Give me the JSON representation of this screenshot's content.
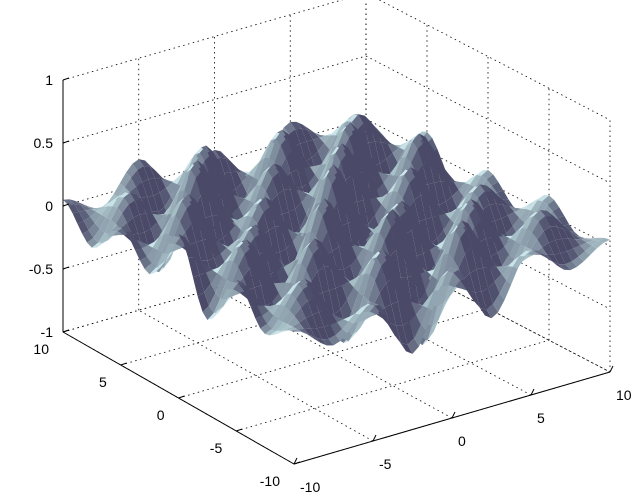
{
  "chart_data": {
    "type": "surface",
    "title": "",
    "xlabel": "",
    "ylabel": "",
    "zlabel": "",
    "xlim": [
      -10,
      10
    ],
    "ylim": [
      -10,
      10
    ],
    "zlim": [
      -1,
      1
    ],
    "x_ticks": [
      "-10",
      "-5",
      "0",
      "5",
      "10"
    ],
    "y_ticks": [
      "-10",
      "-5",
      "0",
      "5",
      "10"
    ],
    "z_ticks": [
      "-1",
      "-0.5",
      "0",
      "0.5",
      "1"
    ],
    "grid": true,
    "surface_color": "#b4d0d4",
    "shadow_color": "#4a4a68",
    "note_values": "approximate z-heights (range about -0.7 to 0.5) over x,y grid",
    "x_values": [
      -10,
      -7.5,
      -5,
      -2.5,
      0,
      2.5,
      5,
      7.5,
      10
    ],
    "y_values": [
      -10,
      -7.5,
      -5,
      -2.5,
      0,
      2.5,
      5,
      7.5,
      10
    ],
    "z_values": [
      [
        0.05,
        -0.15,
        0.1,
        -0.4,
        0.2,
        -0.3,
        0.15,
        -0.1,
        0.05
      ],
      [
        -0.1,
        0.25,
        -0.35,
        0.3,
        -0.55,
        0.35,
        -0.2,
        0.25,
        -0.05
      ],
      [
        0.2,
        -0.3,
        0.35,
        -0.2,
        0.4,
        -0.5,
        0.3,
        -0.25,
        0.15
      ],
      [
        -0.25,
        0.3,
        -0.45,
        0.45,
        -0.3,
        0.25,
        -0.4,
        0.2,
        -0.1
      ],
      [
        0.3,
        -0.2,
        0.2,
        -0.55,
        0.5,
        -0.35,
        0.3,
        -0.3,
        0.1
      ],
      [
        -0.15,
        0.4,
        -0.3,
        0.2,
        -0.4,
        0.45,
        -0.25,
        0.35,
        -0.2
      ],
      [
        0.1,
        -0.35,
        0.45,
        -0.3,
        0.25,
        -0.2,
        0.4,
        -0.45,
        0.15
      ],
      [
        -0.2,
        0.15,
        -0.25,
        0.35,
        -0.45,
        0.3,
        -0.35,
        0.25,
        -0.1
      ],
      [
        0.05,
        -0.1,
        0.2,
        -0.15,
        0.1,
        -0.25,
        0.15,
        -0.05,
        0.0
      ]
    ]
  }
}
